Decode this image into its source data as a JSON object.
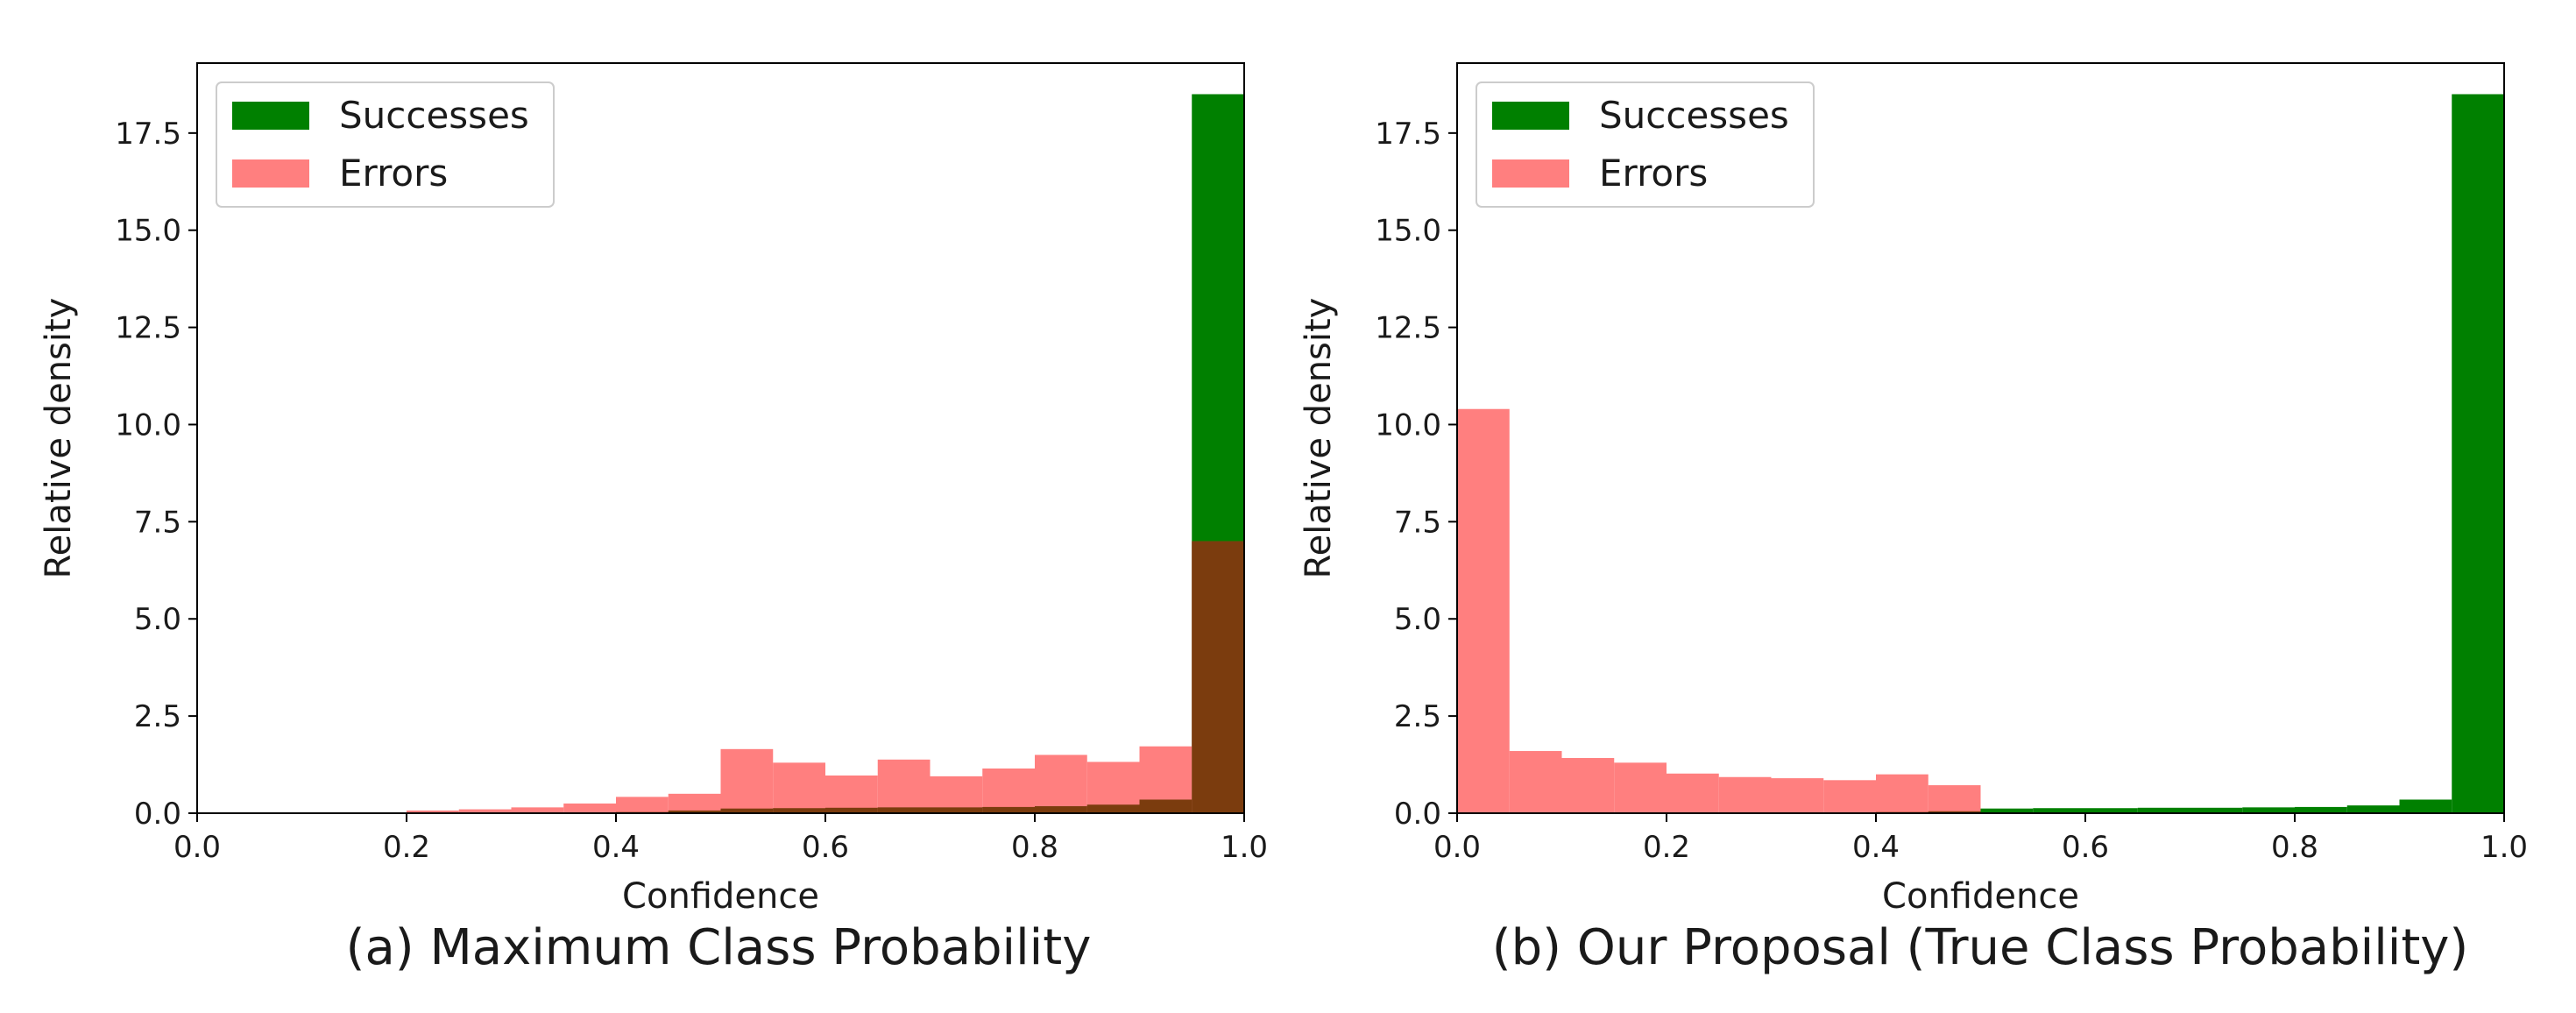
{
  "colors": {
    "successes": "#008000",
    "errors": "#ff7f7f",
    "overlap": "#7b3c0e",
    "axis": "#000000",
    "legend_border": "#cccccc"
  },
  "chart_data": [
    {
      "type": "bar",
      "title": "",
      "caption": "(a) Maximum Class Probability",
      "xlabel": "Confidence",
      "ylabel": "Relative density",
      "xlim": [
        0.0,
        1.0
      ],
      "ylim": [
        0.0,
        19.3
      ],
      "xticks": [
        0.0,
        0.2,
        0.4,
        0.6,
        0.8,
        1.0
      ],
      "xtick_labels": [
        "0.0",
        "0.2",
        "0.4",
        "0.6",
        "0.8",
        "1.0"
      ],
      "yticks": [
        0.0,
        2.5,
        5.0,
        7.5,
        10.0,
        12.5,
        15.0,
        17.5
      ],
      "ytick_labels": [
        "0.0",
        "2.5",
        "5.0",
        "7.5",
        "10.0",
        "12.5",
        "15.0",
        "17.5"
      ],
      "grid": false,
      "legend_position": "upper-left",
      "bin_edges": [
        0.0,
        0.05,
        0.1,
        0.15,
        0.2,
        0.25,
        0.3,
        0.35,
        0.4,
        0.45,
        0.5,
        0.55,
        0.6,
        0.65,
        0.7,
        0.75,
        0.8,
        0.85,
        0.9,
        0.95,
        1.0
      ],
      "series": [
        {
          "name": "Successes",
          "values": [
            0,
            0,
            0,
            0,
            0,
            0,
            0,
            0,
            0.03,
            0.07,
            0.12,
            0.13,
            0.14,
            0.15,
            0.15,
            0.16,
            0.18,
            0.22,
            0.35,
            18.5
          ]
        },
        {
          "name": "Errors",
          "values": [
            0,
            0,
            0,
            0,
            0.07,
            0.1,
            0.15,
            0.25,
            0.42,
            0.5,
            1.65,
            1.3,
            0.97,
            1.38,
            0.95,
            1.15,
            1.5,
            1.32,
            1.72,
            7.0
          ]
        }
      ]
    },
    {
      "type": "bar",
      "title": "",
      "caption": "(b) Our Proposal (True Class Probability)",
      "xlabel": "Confidence",
      "ylabel": "Relative density",
      "xlim": [
        0.0,
        1.0
      ],
      "ylim": [
        0.0,
        19.3
      ],
      "xticks": [
        0.0,
        0.2,
        0.4,
        0.6,
        0.8,
        1.0
      ],
      "xtick_labels": [
        "0.0",
        "0.2",
        "0.4",
        "0.6",
        "0.8",
        "1.0"
      ],
      "yticks": [
        0.0,
        2.5,
        5.0,
        7.5,
        10.0,
        12.5,
        15.0,
        17.5
      ],
      "ytick_labels": [
        "0.0",
        "2.5",
        "5.0",
        "7.5",
        "10.0",
        "12.5",
        "15.0",
        "17.5"
      ],
      "grid": false,
      "legend_position": "upper-left",
      "bin_edges": [
        0.0,
        0.05,
        0.1,
        0.15,
        0.2,
        0.25,
        0.3,
        0.35,
        0.4,
        0.45,
        0.5,
        0.55,
        0.6,
        0.65,
        0.7,
        0.75,
        0.8,
        0.85,
        0.9,
        0.95,
        1.0
      ],
      "series": [
        {
          "name": "Successes",
          "values": [
            0,
            0,
            0,
            0,
            0,
            0,
            0,
            0,
            0.03,
            0.05,
            0.12,
            0.13,
            0.13,
            0.14,
            0.14,
            0.15,
            0.16,
            0.2,
            0.35,
            18.5
          ]
        },
        {
          "name": "Errors",
          "values": [
            10.4,
            1.6,
            1.42,
            1.3,
            1.02,
            0.93,
            0.9,
            0.85,
            1.0,
            0.72,
            0,
            0,
            0,
            0,
            0,
            0,
            0,
            0,
            0,
            0
          ]
        }
      ]
    }
  ]
}
